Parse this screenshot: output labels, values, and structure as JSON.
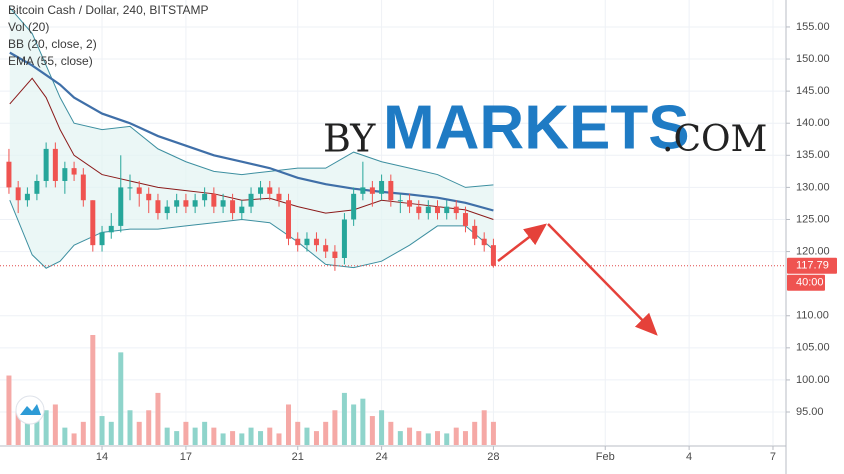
{
  "chart_data": {
    "type": "candlestick",
    "title": "Bitcoin Cash / Dollar, 240, BITSTAMP",
    "indicators": [
      "Vol (20)",
      "BB (20, close, 2)",
      "EMA (55, close)"
    ],
    "watermark": [
      "BY",
      "MARKETS",
      ".COM"
    ],
    "xlim": [
      10.35,
      38.43
    ],
    "xticks": [
      14,
      17,
      21,
      24,
      28,
      {
        "value": 32,
        "label": "Feb"
      },
      35,
      38
    ],
    "xtick_labels": [
      "14",
      "17",
      "21",
      "24",
      "28",
      "Feb",
      "4",
      "7"
    ],
    "ylim": [
      89.86,
      159.2
    ],
    "yticks": [
      {
        "value": 95,
        "label": "95.00"
      },
      {
        "value": 100,
        "label": "100.00"
      },
      {
        "value": 105,
        "label": "105.00"
      },
      {
        "value": 110,
        "label": "110.00"
      },
      {
        "value": 120,
        "label": "120.00"
      },
      {
        "value": 125,
        "label": "125.00"
      },
      {
        "value": 130,
        "label": "130.00"
      },
      {
        "value": 135,
        "label": "135.00"
      },
      {
        "value": 140,
        "label": "140.00"
      },
      {
        "value": 145,
        "label": "145.00"
      },
      {
        "value": 150,
        "label": "150.00"
      },
      {
        "value": 155,
        "label": "155.00"
      }
    ],
    "grid": true,
    "up_color": "#26a69a",
    "down_color": "#ef5350",
    "volume_up_color": "#8fd4cb",
    "volume_down_color": "#f5a9a6",
    "last_price": 117.79,
    "last_price_label": "117.79",
    "countdown": "40:00",
    "candles": {
      "x": [
        10.67,
        11,
        11.33,
        11.67,
        12,
        12.33,
        12.67,
        13,
        13.33,
        13.67,
        14,
        14.33,
        14.67,
        15,
        15.33,
        15.67,
        16,
        16.33,
        16.67,
        17,
        17.33,
        17.67,
        18,
        18.33,
        18.67,
        19,
        19.33,
        19.67,
        20,
        20.33,
        20.67,
        21,
        21.33,
        21.67,
        22,
        22.33,
        22.67,
        23,
        23.33,
        23.67,
        24,
        24.33,
        24.67,
        25,
        25.33,
        25.67,
        26,
        26.33,
        26.67,
        27,
        27.33,
        27.67,
        28
      ],
      "open": [
        134,
        130,
        128,
        129,
        131,
        136,
        131,
        133,
        132,
        128,
        121,
        123,
        124,
        130,
        130,
        129,
        128,
        126,
        127,
        128,
        127,
        128,
        129,
        127,
        128,
        126,
        127,
        129,
        130,
        129,
        128,
        122,
        121,
        122,
        121,
        120,
        119,
        125,
        129,
        130,
        129,
        131,
        128,
        128,
        127,
        126,
        127,
        126,
        127,
        126,
        124,
        122,
        121
      ],
      "high": [
        136,
        131,
        130,
        132,
        137,
        137,
        134,
        134,
        133,
        128,
        124,
        126,
        135,
        132,
        131,
        130,
        129,
        128,
        129,
        129,
        129,
        130,
        130,
        129,
        129,
        128,
        130,
        131,
        131,
        130,
        129,
        123,
        123,
        123,
        122,
        121,
        126,
        130,
        134,
        131,
        132,
        132,
        129,
        129,
        128,
        128,
        128,
        128,
        128,
        127,
        125,
        123,
        122
      ],
      "low": [
        129,
        126,
        127,
        128,
        130,
        130,
        129,
        131,
        127,
        120,
        120,
        122,
        123,
        128,
        127,
        126,
        125,
        125,
        126,
        126,
        126,
        127,
        126,
        126,
        125,
        125,
        126,
        128,
        128,
        127,
        121,
        120,
        120,
        120,
        119,
        117,
        118,
        124,
        128,
        127,
        128,
        127,
        126,
        126,
        125,
        125,
        125,
        125,
        125,
        123,
        121,
        120,
        117.5
      ],
      "close": [
        130,
        128,
        129,
        131,
        136,
        131,
        133,
        132,
        128,
        121,
        123,
        124,
        130,
        130,
        129,
        128,
        126,
        127,
        128,
        127,
        128,
        129,
        127,
        128,
        126,
        127,
        129,
        130,
        129,
        128,
        122,
        121,
        122,
        121,
        120,
        119,
        125,
        129,
        130,
        129,
        131,
        128,
        128,
        127,
        126,
        127,
        126,
        127,
        126,
        124,
        122,
        121,
        117.79
      ],
      "volume": [
        60,
        30,
        20,
        25,
        30,
        35,
        15,
        10,
        20,
        95,
        25,
        20,
        80,
        30,
        20,
        30,
        45,
        15,
        12,
        20,
        15,
        20,
        15,
        10,
        12,
        10,
        15,
        12,
        15,
        10,
        35,
        20,
        15,
        12,
        20,
        30,
        45,
        35,
        40,
        25,
        30,
        20,
        12,
        15,
        12,
        10,
        12,
        10,
        15,
        12,
        20,
        30,
        20
      ]
    },
    "lines_x": [
      10.7,
      11.5,
      12,
      12.5,
      13,
      14,
      15,
      16,
      17,
      18,
      19,
      20,
      21,
      22,
      23,
      24,
      25,
      26,
      27,
      28
    ],
    "bb_upper": {
      "color": "#3d8fa0",
      "values": [
        158,
        154,
        149,
        144,
        140,
        139,
        139.5,
        136,
        134,
        132.5,
        132,
        132.5,
        133,
        133,
        135.5,
        134,
        133,
        132,
        130,
        130.4
      ]
    },
    "bb_lower": {
      "color": "#3d8fa0",
      "values": [
        128,
        119.5,
        117.4,
        118.5,
        121,
        123,
        123.5,
        123.5,
        124,
        124.5,
        125,
        124.5,
        121.5,
        118,
        117.5,
        118.5,
        121,
        124,
        124,
        120.3
      ]
    },
    "bb_middle": {
      "color": "#8b1a1a",
      "values": [
        143,
        147,
        144,
        139,
        135,
        132,
        131,
        130,
        129.5,
        129,
        128,
        128.3,
        127,
        126,
        126.5,
        128,
        127.5,
        127,
        126.5,
        125
      ]
    },
    "ema": {
      "color": "#3f6fa8",
      "values": [
        151,
        149,
        147.5,
        146,
        144,
        141.5,
        140,
        138,
        136.5,
        135,
        134,
        133,
        131.5,
        130.5,
        129.8,
        129.3,
        128.9,
        128.4,
        127.6,
        126.4
      ]
    }
  }
}
